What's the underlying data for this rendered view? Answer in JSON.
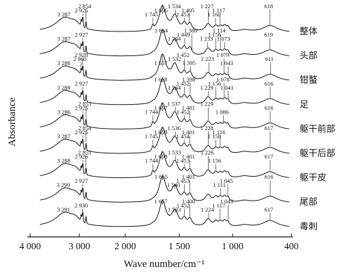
{
  "chart_data": {
    "type": "line",
    "title": "",
    "xlabel": "Wave number/cm⁻¹",
    "ylabel": "Absorbance",
    "xlim": [
      4000,
      400
    ],
    "x_reversed": true,
    "y_axis_ticks": false,
    "grid": false,
    "legend": "none",
    "x_ticks": [
      {
        "value": 4000,
        "label": "4 000"
      },
      {
        "value": 3000,
        "label": "3 000"
      },
      {
        "value": 2000,
        "label": "2 000"
      },
      {
        "value": 1500,
        "label": "1 500"
      },
      {
        "value": 1000,
        "label": "1 000"
      },
      {
        "value": 400,
        "label": "400"
      }
    ],
    "series": [
      {
        "label": "整体",
        "peaks": [
          {
            "x": 3287,
            "label": "3 287"
          },
          {
            "x": 2925,
            "label": "2 925"
          },
          {
            "x": 2854,
            "label": "2 854"
          },
          {
            "x": 1745,
            "label": "1 745"
          },
          {
            "x": 1656,
            "label": "1 656"
          },
          {
            "x": 1534,
            "label": "1 534"
          },
          {
            "x": 1453,
            "label": "1 453"
          },
          {
            "x": 1405,
            "label": "1 405"
          },
          {
            "x": 1227,
            "label": "1 227"
          },
          {
            "x": 1160,
            "label": "1 160"
          },
          {
            "x": 1117,
            "label": "1 117"
          },
          {
            "x": 618,
            "label": "618"
          }
        ]
      },
      {
        "label": "头部",
        "peaks": [
          {
            "x": 3287,
            "label": "3 287"
          },
          {
            "x": 2927,
            "label": "2 927"
          },
          {
            "x": 1654,
            "label": "1 654"
          },
          {
            "x": 1534,
            "label": "1 534"
          },
          {
            "x": 1449,
            "label": "1 449"
          },
          {
            "x": 1380,
            "label": "1 380"
          },
          {
            "x": 1233,
            "label": "1 233"
          },
          {
            "x": 1156,
            "label": "1 156"
          },
          {
            "x": 1114,
            "label": "1 114"
          },
          {
            "x": 1073,
            "label": "1 073"
          },
          {
            "x": 619,
            "label": "619"
          }
        ]
      },
      {
        "label": "钳螯",
        "peaks": [
          {
            "x": 3288,
            "label": "3 288"
          },
          {
            "x": 2960,
            "label": "2 960"
          },
          {
            "x": 2928,
            "label": "2 928"
          },
          {
            "x": 1657,
            "label": "1 657"
          },
          {
            "x": 1532,
            "label": "1 532"
          },
          {
            "x": 1452,
            "label": "1 452"
          },
          {
            "x": 1395,
            "label": "1 395"
          },
          {
            "x": 1223,
            "label": "1 223"
          },
          {
            "x": 1079,
            "label": "1 079"
          },
          {
            "x": 1043,
            "label": "1 043"
          },
          {
            "x": 611,
            "label": "611"
          }
        ]
      },
      {
        "label": "足",
        "peaks": [
          {
            "x": 3289,
            "label": "3 289"
          },
          {
            "x": 2927,
            "label": "2 927"
          },
          {
            "x": 1658,
            "label": "1 658"
          },
          {
            "x": 1534,
            "label": "1 534"
          },
          {
            "x": 1452,
            "label": "1 452"
          },
          {
            "x": 1398,
            "label": "1 398"
          },
          {
            "x": 1229,
            "label": "1 229"
          },
          {
            "x": 1156,
            "label": "1 156"
          },
          {
            "x": 1078,
            "label": "1 078"
          },
          {
            "x": 1041,
            "label": "1 041"
          },
          {
            "x": 616,
            "label": "616"
          }
        ]
      },
      {
        "label": "躯干前部",
        "peaks": [
          {
            "x": 3286,
            "label": "3 286"
          },
          {
            "x": 2925,
            "label": "2 925"
          },
          {
            "x": 2853,
            "label": "2 853"
          },
          {
            "x": 1744,
            "label": "1 744"
          },
          {
            "x": 1657,
            "label": "1 657"
          },
          {
            "x": 1537,
            "label": "1 537"
          },
          {
            "x": 1452,
            "label": "1 452"
          },
          {
            "x": 1401,
            "label": "1 401"
          },
          {
            "x": 1229,
            "label": "1 229"
          },
          {
            "x": 1086,
            "label": "1 086"
          },
          {
            "x": 616,
            "label": "616"
          }
        ]
      },
      {
        "label": "躯干后部",
        "peaks": [
          {
            "x": 3287,
            "label": "3 287"
          },
          {
            "x": 2925,
            "label": "2 925"
          },
          {
            "x": 2854,
            "label": "2 854"
          },
          {
            "x": 1745,
            "label": "1 745"
          },
          {
            "x": 1658,
            "label": "1 658"
          },
          {
            "x": 1536,
            "label": "1 536"
          },
          {
            "x": 1454,
            "label": "1 454"
          },
          {
            "x": 1401,
            "label": "1 401"
          },
          {
            "x": 1228,
            "label": "1 228"
          },
          {
            "x": 1158,
            "label": "1 158"
          },
          {
            "x": 1116,
            "label": "1 116"
          },
          {
            "x": 617,
            "label": "617"
          }
        ]
      },
      {
        "label": "躯干皮",
        "peaks": [
          {
            "x": 3288,
            "label": "3 288"
          },
          {
            "x": 2926,
            "label": "2 926"
          },
          {
            "x": 2855,
            "label": "2 855"
          },
          {
            "x": 1744,
            "label": "1 744"
          },
          {
            "x": 1658,
            "label": "1 658"
          },
          {
            "x": 1533,
            "label": "1 533"
          },
          {
            "x": 1453,
            "label": "1 453"
          },
          {
            "x": 1401,
            "label": "1 401"
          },
          {
            "x": 1226,
            "label": "1 226"
          },
          {
            "x": 1156,
            "label": "1 156"
          },
          {
            "x": 617,
            "label": "617"
          }
        ]
      },
      {
        "label": "尾部",
        "peaks": [
          {
            "x": 3299,
            "label": "3 299"
          },
          {
            "x": 2927,
            "label": "2 927"
          },
          {
            "x": 1655,
            "label": "1 655"
          },
          {
            "x": 1540,
            "label": "1 540"
          },
          {
            "x": 1453,
            "label": "1 453"
          },
          {
            "x": 1401,
            "label": "1 401"
          },
          {
            "x": 1111,
            "label": "1 111"
          },
          {
            "x": 1045,
            "label": "1 045"
          },
          {
            "x": 616,
            "label": "616"
          }
        ]
      },
      {
        "label": "毒刺",
        "peaks": [
          {
            "x": 3291,
            "label": "3 291"
          },
          {
            "x": 2930,
            "label": "2 930"
          },
          {
            "x": 1657,
            "label": "1 657"
          },
          {
            "x": 1533,
            "label": "1 533"
          },
          {
            "x": 1452,
            "label": "1 452"
          },
          {
            "x": 1400,
            "label": "1 400"
          },
          {
            "x": 1224,
            "label": "1 224"
          },
          {
            "x": 1117,
            "label": "1 117"
          },
          {
            "x": 1043,
            "label": "1 043"
          },
          {
            "x": 617,
            "label": "617"
          }
        ]
      }
    ]
  }
}
